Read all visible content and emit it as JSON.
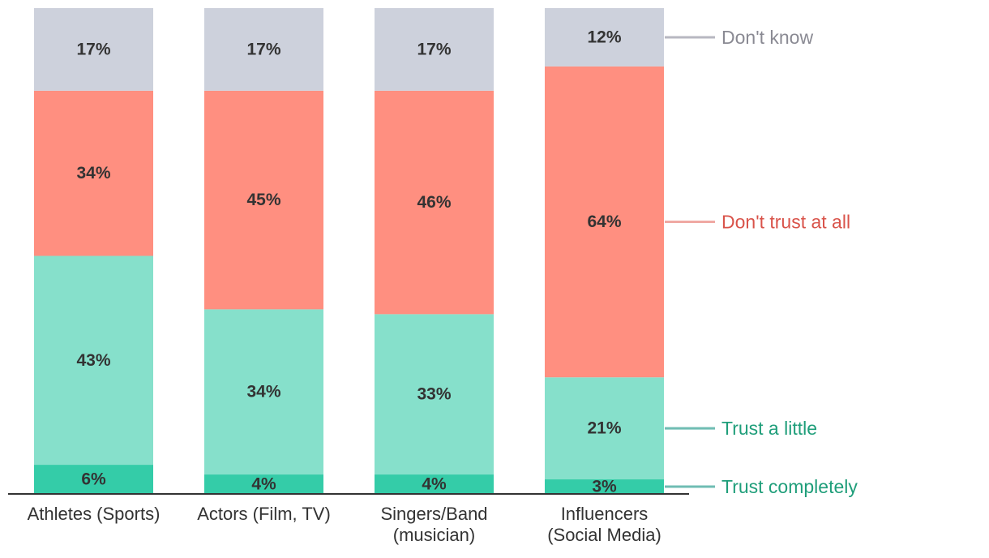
{
  "chart_data": {
    "type": "bar",
    "stacked": true,
    "normalized": true,
    "categories": [
      [
        "Athletes (Sports)"
      ],
      [
        "Actors (Film, TV)"
      ],
      [
        "Singers/Band",
        "(musician)"
      ],
      [
        "Influencers",
        "(Social Media)"
      ]
    ],
    "series": [
      {
        "name": "Trust completely",
        "color": "#34cca8",
        "legend_color": "#1f9e7a",
        "line_color": "#6fbdb3",
        "values": [
          6,
          4,
          4,
          3
        ]
      },
      {
        "name": "Trust a little",
        "color": "#86e0cb",
        "legend_color": "#1f9e7a",
        "line_color": "#6fbdb3",
        "values": [
          43,
          34,
          33,
          21
        ]
      },
      {
        "name": "Don't trust at all",
        "color": "#ff8f80",
        "legend_color": "#d9534a",
        "line_color": "#f0a9a3",
        "values": [
          34,
          45,
          46,
          64
        ]
      },
      {
        "name": "Don't know",
        "color": "#cdd1dc",
        "legend_color": "#8a8a93",
        "line_color": "#b7b7c1",
        "values": [
          17,
          17,
          17,
          12
        ]
      }
    ],
    "value_suffix": "%",
    "xlabel": "",
    "ylabel": "",
    "legend_position": "right, labels aligned to last bar"
  }
}
